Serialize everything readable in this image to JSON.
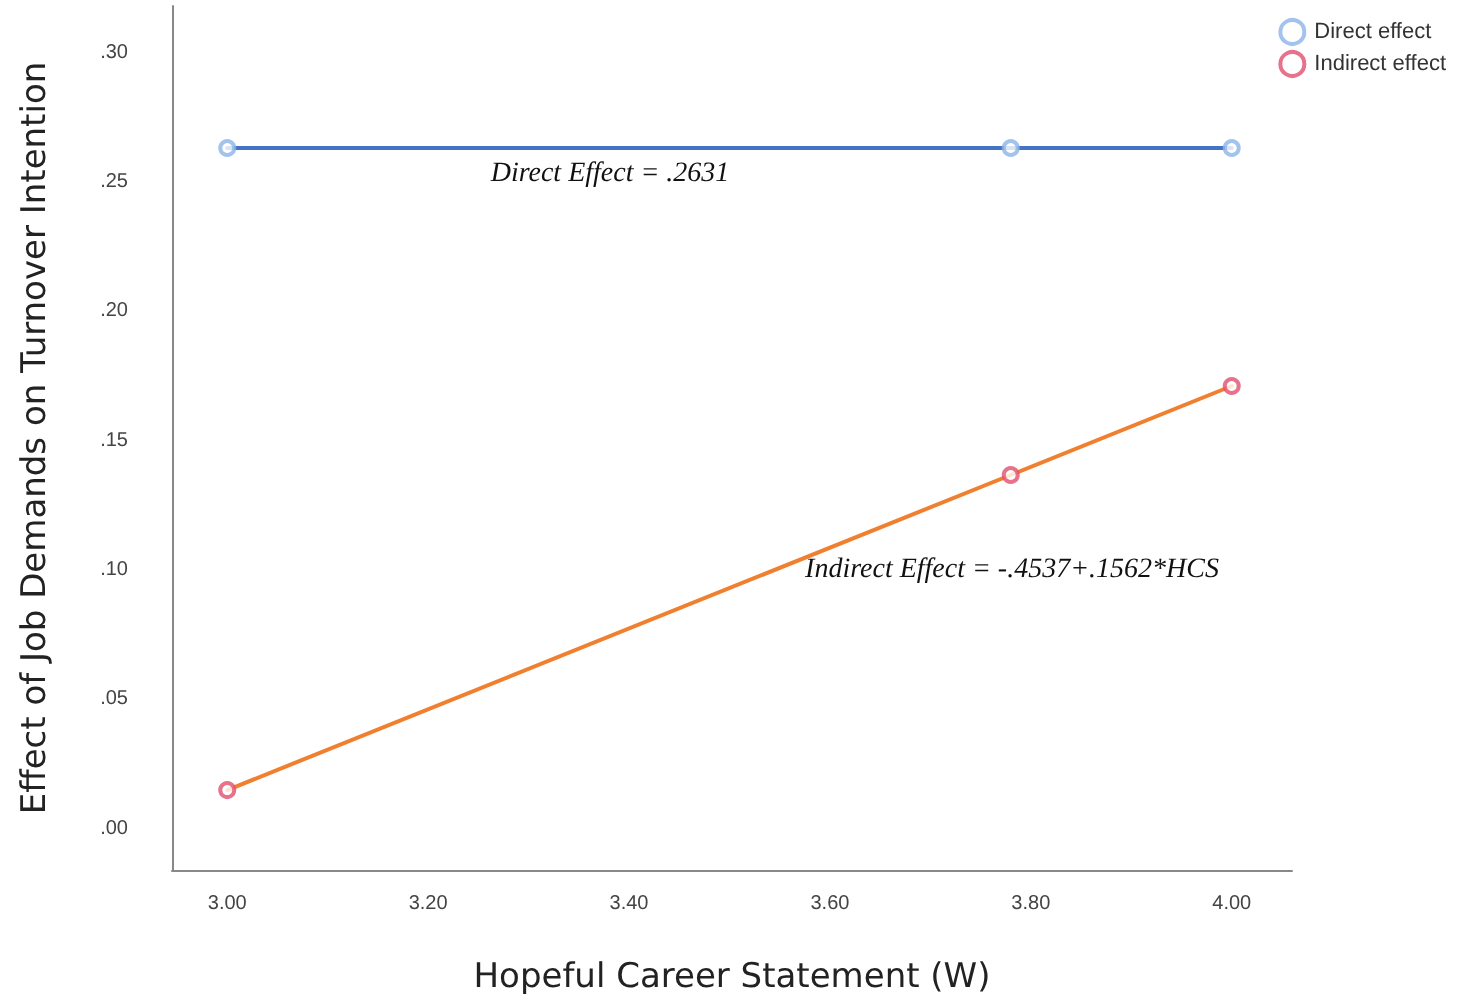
{
  "chart_data": {
    "type": "scatter",
    "xlabel": "Hopeful Career Statement (W)",
    "ylabel": "Effect of Job Demands on Turnover Intention",
    "xlim": [
      2.945,
      4.06
    ],
    "ylim": [
      -0.016,
      0.318
    ],
    "xticks": [
      {
        "value": 3,
        "label": "3.00"
      },
      {
        "value": 3.2,
        "label": "3.20"
      },
      {
        "value": 3.4,
        "label": "3.40"
      },
      {
        "value": 3.6,
        "label": "3.60"
      },
      {
        "value": 3.8,
        "label": "3.80"
      },
      {
        "value": 4,
        "label": "4.00"
      }
    ],
    "yticks": [
      {
        "value": 0,
        "label": ".00"
      },
      {
        "value": 0.05,
        "label": ".05"
      },
      {
        "value": 0.1,
        "label": ".10"
      },
      {
        "value": 0.15,
        "label": ".15"
      },
      {
        "value": 0.2,
        "label": ".20"
      },
      {
        "value": 0.25,
        "label": ".25"
      },
      {
        "value": 0.3,
        "label": ".30"
      }
    ],
    "legend": "top right",
    "series": [
      {
        "type": "line",
        "marker": "none",
        "color": "#4472c4",
        "x": [
          3.0,
          3.78,
          4.0
        ],
        "values": [
          0.2631,
          0.2631,
          0.2631
        ]
      },
      {
        "type": "line",
        "marker": "none",
        "color": "#f08030",
        "x": [
          3.0,
          3.78,
          4.0
        ],
        "values": [
          0.0149,
          0.1367,
          0.1711
        ]
      },
      {
        "name": "Direct effect",
        "marker": "circle",
        "color": "#8cb4e8",
        "x": [
          3.0,
          3.78,
          4.0
        ],
        "values": [
          0.2631,
          0.2631,
          0.2631
        ]
      },
      {
        "name": "Indirect effect",
        "marker": "circle",
        "color": "#e0506e",
        "x": [
          3.0,
          3.78,
          4.0
        ],
        "values": [
          0.0149,
          0.1367,
          0.1711
        ]
      }
    ],
    "annotations": [
      "Direct Effect = .2631",
      "Indirect Effect = -.4537+.1562*HCS"
    ]
  }
}
